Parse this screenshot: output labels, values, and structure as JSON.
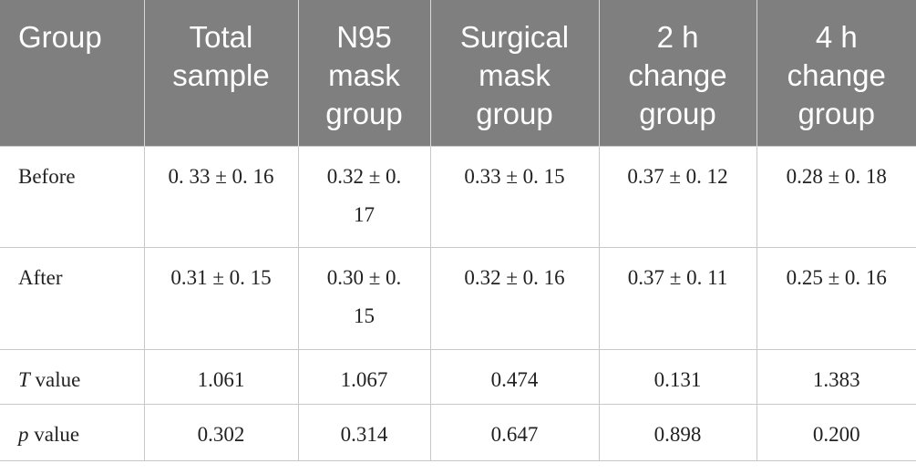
{
  "table": {
    "header": [
      [
        "Group"
      ],
      [
        "Total",
        "sample"
      ],
      [
        "N95",
        "mask",
        "group"
      ],
      [
        "Surgical",
        "mask",
        "group"
      ],
      [
        "2 h",
        "change",
        "group"
      ],
      [
        "4 h",
        "change",
        "group"
      ]
    ],
    "rows": [
      {
        "label": "Before",
        "cells": [
          "0. 33 ± 0. 16",
          "0.32 ± 0. 17",
          "0.33 ± 0. 15",
          "0.37 ± 0. 12",
          "0.28 ± 0. 18"
        ]
      },
      {
        "label": "After",
        "cells": [
          "0.31 ± 0. 15",
          "0.30 ± 0. 15",
          "0.32 ± 0. 16",
          "0.37 ± 0. 11",
          "0.25 ± 0. 16"
        ]
      },
      {
        "label": {
          "variable": "T",
          "text": "value"
        },
        "cells": [
          "1.061",
          "1.067",
          "0.474",
          "0.131",
          "1.383"
        ]
      },
      {
        "label": {
          "variable": "p",
          "text": "value"
        },
        "cells": [
          "0.302",
          "0.314",
          "0.647",
          "0.898",
          "0.200"
        ]
      }
    ]
  }
}
